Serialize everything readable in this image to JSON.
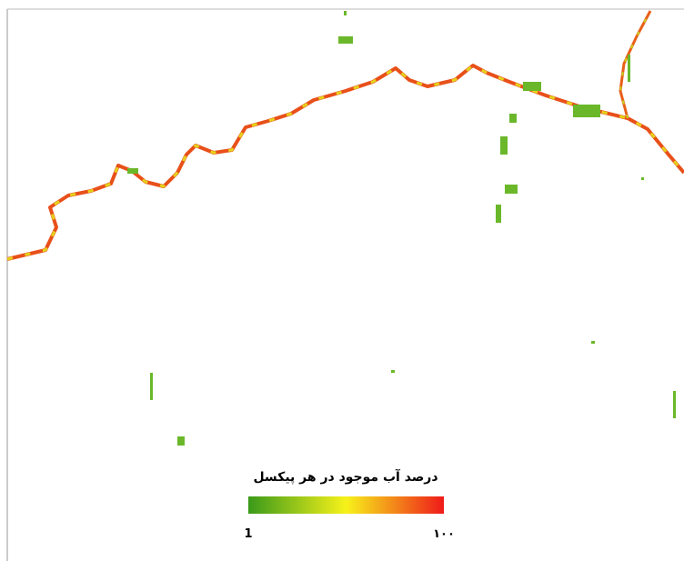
{
  "legend": {
    "title": "درصد آب موجود در هر پیکسل",
    "colors": [
      "#3a9a1a",
      "#f7f21a",
      "#ef1a1a"
    ],
    "min": 1,
    "max": {
      "value": 100,
      "label": "۱۰۰"
    }
  }
}
